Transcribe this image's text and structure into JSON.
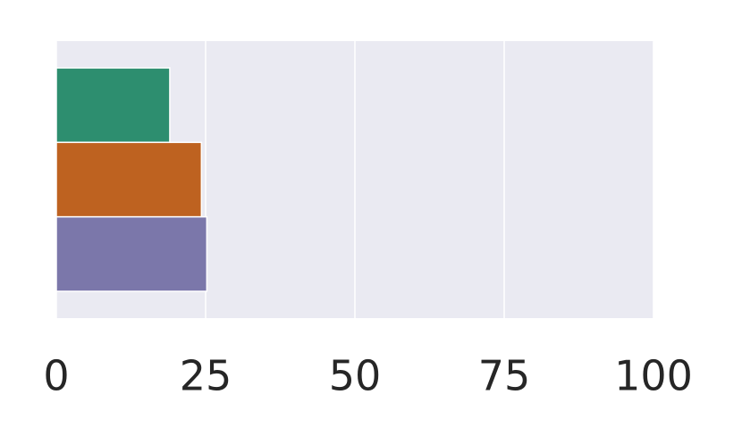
{
  "chart_data": {
    "type": "bar",
    "orientation": "horizontal",
    "categories": [
      null,
      null,
      null
    ],
    "values": [
      19,
      24.3,
      25.2
    ],
    "colors": [
      "#2d8e6f",
      "#be6220",
      "#7b77aa"
    ],
    "xlim": [
      0,
      100
    ],
    "xticks": [
      0,
      25,
      50,
      75,
      100
    ],
    "grid": true
  }
}
